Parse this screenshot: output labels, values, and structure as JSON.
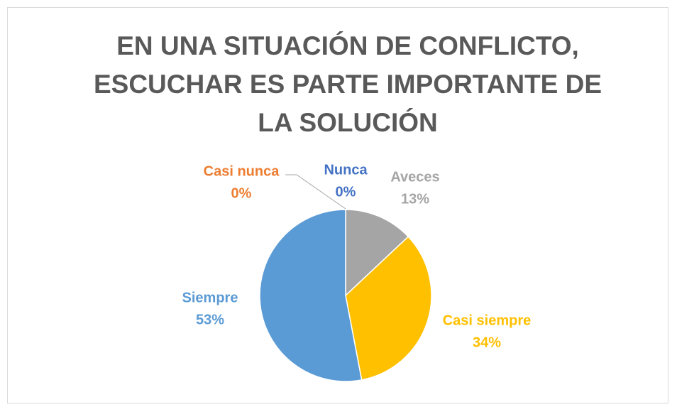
{
  "chart_data": {
    "type": "pie",
    "title": "EN UNA SITUACIÓN DE CONFLICTO, ESCUCHAR ES PARTE IMPORTANTE DE LA SOLUCIÓN",
    "categories": [
      "Nunca",
      "Casi nunca",
      "Aveces",
      "Casi siempre",
      "Siempre"
    ],
    "values": [
      0,
      0,
      13,
      34,
      53
    ],
    "value_labels": [
      "0%",
      "0%",
      "13%",
      "34%",
      "53%"
    ],
    "colors": [
      "#4472c4",
      "#ed7d31",
      "#a5a5a5",
      "#ffc000",
      "#5b9bd5"
    ]
  }
}
